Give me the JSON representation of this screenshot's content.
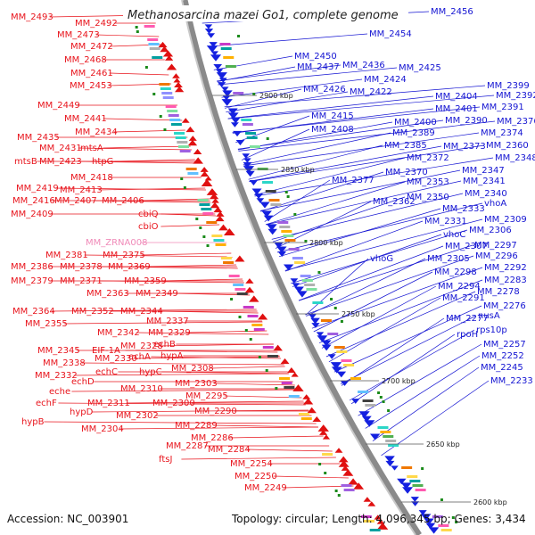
{
  "title": "Methanosarcina mazei Go1, complete genome",
  "accession": "Accession: NC_003901",
  "topology": "Topology: circular; Length: 4,096,345 bp; Genes: 3,434",
  "colors": {
    "left_labels": "#e8141c",
    "right_labels": "#1414d2",
    "pink_label": "#f08ab8",
    "forward": "#e01010",
    "reverse": "#1420e0",
    "backbone": "#888888"
  },
  "scale_ticks": [
    "2900 kbp",
    "2850 kbp",
    "2800 kbp",
    "2750 kbp",
    "2700 kbp",
    "2650 kbp",
    "2600 kbp"
  ],
  "left_labels": [
    "MM_2493",
    "MM_2492",
    "MM_2473",
    "MM_2472",
    "MM_2468",
    "MM_2461",
    "MM_2453",
    "MM_2449",
    "MM_2441",
    "MM_2434",
    "MM_2435",
    "MM_2431",
    "mtsA",
    "mtsB",
    "MM_2423",
    "htpG",
    "MM_2418",
    "MM_2419",
    "MM_2413",
    "MM_2416",
    "MM_2407",
    "MM_2406",
    "MM_2409",
    "cbiQ",
    "cbiO",
    "MM_ZRNA008",
    "MM_2381",
    "MM_2375",
    "MM_2386",
    "MM_2378",
    "MM_2369",
    "MM_2379",
    "MM_2371",
    "MM_2359",
    "MM_2363",
    "MM_2349",
    "MM_2364",
    "MM_2352",
    "MM_2344",
    "MM_2355",
    "MM_2337",
    "MM_2342",
    "MM_2329",
    "MM_2345",
    "EIF-1A",
    "MM_2328",
    "echB",
    "MM_2338",
    "MM_2330",
    "hypA",
    "echA",
    "MM_2332",
    "echC",
    "hypC",
    "MM_2308",
    "echD",
    "MM_2303",
    "eche",
    "MM_2310",
    "echF",
    "MM_2311",
    "MM_2300",
    "MM_2295",
    "hypD",
    "MM_2302",
    "hypB",
    "MM_2304",
    "MM_2290",
    "MM_2289",
    "MM_2286",
    "MM_2287",
    "MM_2284",
    "ftsJ",
    "MM_2254",
    "MM_2250",
    "MM_2249"
  ],
  "right_labels": [
    "MM_2456",
    "MM_2454",
    "MM_2450",
    "MM_2437",
    "MM_2436",
    "MM_2425",
    "MM_2424",
    "MM_2426",
    "MM_2422",
    "MM_2399",
    "MM_2404",
    "MM_2392",
    "MM_2401",
    "MM_2391",
    "MM_2415",
    "MM_2400",
    "MM_2390",
    "MM_2376",
    "MM_2408",
    "MM_2389",
    "MM_2374",
    "MM_2385",
    "MM_2373",
    "MM_2360",
    "MM_2372",
    "MM_2348",
    "MM_2370",
    "MM_2347",
    "MM_2377",
    "MM_2353",
    "MM_2341",
    "MM_2350",
    "MM_2340",
    "MM_2362",
    "MM_2333",
    "vhoA",
    "MM_2331",
    "MM_2309",
    "vhoC",
    "MM_2306",
    "MM_2307",
    "MM_2297",
    "vhoG",
    "MM_2305",
    "MM_2296",
    "MM_2298",
    "MM_2292",
    "MM_2294",
    "MM_2283",
    "MM_2291",
    "MM_2278",
    "MM_2276",
    "MM_2277",
    "nusA",
    "rpoH",
    "rps10p",
    "MM_2257",
    "MM_2252",
    "MM_2245",
    "MM_2233"
  ]
}
